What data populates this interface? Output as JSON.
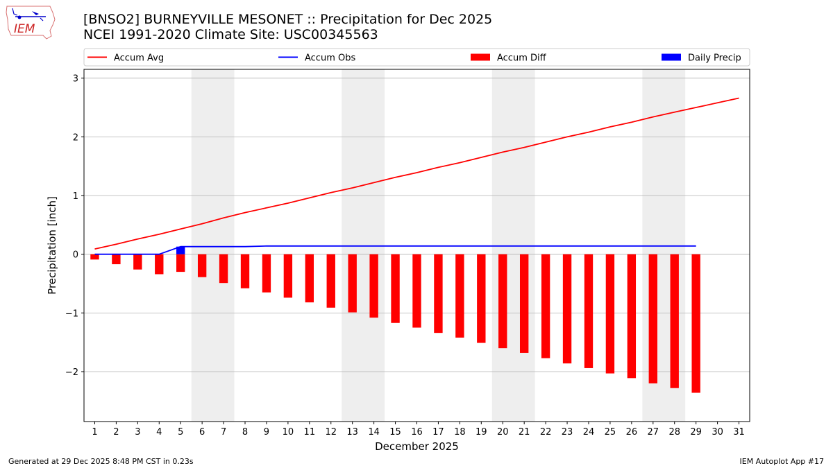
{
  "header": {
    "title_line1": "[BNSO2] BURNEYVILLE MESONET :: Precipitation for Dec 2025",
    "title_line2": "NCEI 1991-2020 Climate Site: USC00345563"
  },
  "logo": {
    "text": "IEM",
    "icon": "iem-iowa-map-logo-icon"
  },
  "footer": {
    "left": "Generated at 29 Dec 2025 8:48 PM CST in 0.23s",
    "right": "IEM Autoplot App #17"
  },
  "colors": {
    "avg": "#ff0000",
    "obs": "#0000ff",
    "diff": "#ff0000",
    "daily": "#0000ff",
    "weekend": "#eeeeee",
    "grid": "#b0b0b0"
  },
  "chart_data": {
    "type": "bar",
    "title": "[BNSO2] BURNEYVILLE MESONET :: Precipitation for Dec 2025",
    "subtitle": "NCEI 1991-2020 Climate Site: USC00345563",
    "xlabel": "December 2025",
    "ylabel": "Precipitation [inch]",
    "xlim": [
      0.5,
      31.5
    ],
    "ylim": [
      -2.85,
      3.15
    ],
    "yticks": [
      -2,
      -1,
      0,
      1,
      2,
      3
    ],
    "ytick_labels": [
      "−2",
      "−1",
      "0",
      "1",
      "2",
      "3"
    ],
    "grid": "horizontal",
    "legend_position": "top",
    "days": [
      1,
      2,
      3,
      4,
      5,
      6,
      7,
      8,
      9,
      10,
      11,
      12,
      13,
      14,
      15,
      16,
      17,
      18,
      19,
      20,
      21,
      22,
      23,
      24,
      25,
      26,
      27,
      28,
      29,
      30,
      31
    ],
    "weekend_spans": [
      [
        6,
        7
      ],
      [
        13,
        14
      ],
      [
        20,
        21
      ],
      [
        27,
        28
      ]
    ],
    "series": [
      {
        "name": "Accum Avg",
        "kind": "line",
        "x": [
          1,
          2,
          3,
          4,
          5,
          6,
          7,
          8,
          9,
          10,
          11,
          12,
          13,
          14,
          15,
          16,
          17,
          18,
          19,
          20,
          21,
          22,
          23,
          24,
          25,
          26,
          27,
          28,
          29,
          30,
          31
        ],
        "values": [
          0.09,
          0.17,
          0.26,
          0.34,
          0.43,
          0.52,
          0.62,
          0.71,
          0.79,
          0.87,
          0.96,
          1.05,
          1.13,
          1.22,
          1.31,
          1.39,
          1.48,
          1.56,
          1.65,
          1.74,
          1.82,
          1.91,
          2.0,
          2.08,
          2.17,
          2.25,
          2.34,
          2.42,
          2.5,
          2.58,
          2.66
        ]
      },
      {
        "name": "Accum Obs",
        "kind": "line",
        "x": [
          1,
          2,
          3,
          4,
          5,
          6,
          7,
          8,
          9,
          10,
          11,
          12,
          13,
          14,
          15,
          16,
          17,
          18,
          19,
          20,
          21,
          22,
          23,
          24,
          25,
          26,
          27,
          28,
          29
        ],
        "values": [
          0.0,
          0.0,
          0.0,
          0.0,
          0.13,
          0.13,
          0.13,
          0.13,
          0.14,
          0.14,
          0.14,
          0.14,
          0.14,
          0.14,
          0.14,
          0.14,
          0.14,
          0.14,
          0.14,
          0.14,
          0.14,
          0.14,
          0.14,
          0.14,
          0.14,
          0.14,
          0.14,
          0.14,
          0.14
        ]
      },
      {
        "name": "Accum Diff",
        "kind": "bar",
        "x": [
          1,
          2,
          3,
          4,
          5,
          6,
          7,
          8,
          9,
          10,
          11,
          12,
          13,
          14,
          15,
          16,
          17,
          18,
          19,
          20,
          21,
          22,
          23,
          24,
          25,
          26,
          27,
          28,
          29
        ],
        "values": [
          -0.09,
          -0.17,
          -0.26,
          -0.34,
          -0.3,
          -0.39,
          -0.49,
          -0.58,
          -0.65,
          -0.74,
          -0.82,
          -0.91,
          -0.99,
          -1.08,
          -1.17,
          -1.25,
          -1.34,
          -1.42,
          -1.51,
          -1.6,
          -1.68,
          -1.77,
          -1.86,
          -1.94,
          -2.03,
          -2.11,
          -2.2,
          -2.28,
          -2.36
        ]
      },
      {
        "name": "Daily Precip",
        "kind": "bar",
        "x": [
          5
        ],
        "values": [
          0.13
        ]
      }
    ]
  }
}
